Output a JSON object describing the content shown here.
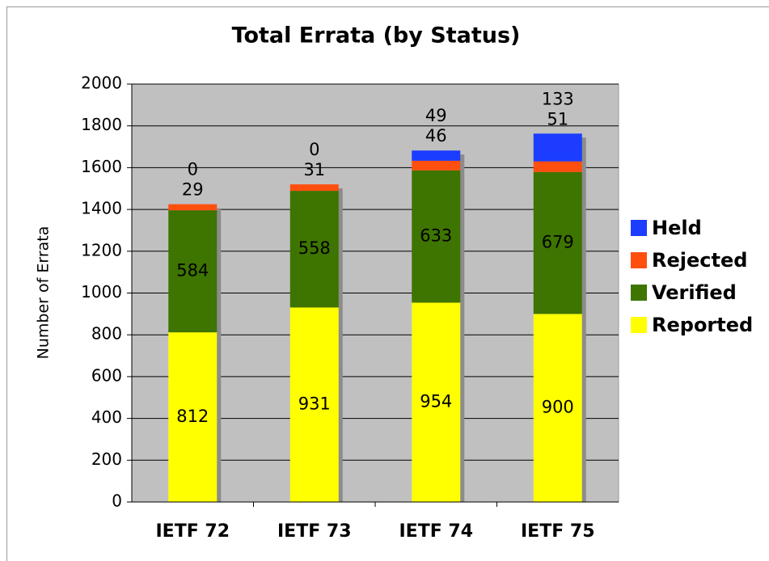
{
  "chart_data": {
    "type": "stacked_bar",
    "title": "Total Errata (by Status)",
    "y_label": "Number of Errata",
    "categories": [
      "IETF 72",
      "IETF 73",
      "IETF 74",
      "IETF 75"
    ],
    "series": [
      {
        "name": "Reported",
        "color": "#ffff00",
        "values": [
          812,
          931,
          954,
          900
        ]
      },
      {
        "name": "Verified",
        "color": "#3e7400",
        "values": [
          584,
          558,
          633,
          679
        ]
      },
      {
        "name": "Rejected",
        "color": "#ff4f0f",
        "values": [
          29,
          31,
          46,
          51
        ]
      },
      {
        "name": "Held",
        "color": "#1c3dff",
        "values": [
          0,
          0,
          49,
          133
        ]
      }
    ],
    "ylim": [
      0,
      2000
    ],
    "yticks": [
      0,
      200,
      400,
      600,
      800,
      1000,
      1200,
      1400,
      1600,
      1800,
      2000
    ],
    "grid": true,
    "legend": "right"
  }
}
